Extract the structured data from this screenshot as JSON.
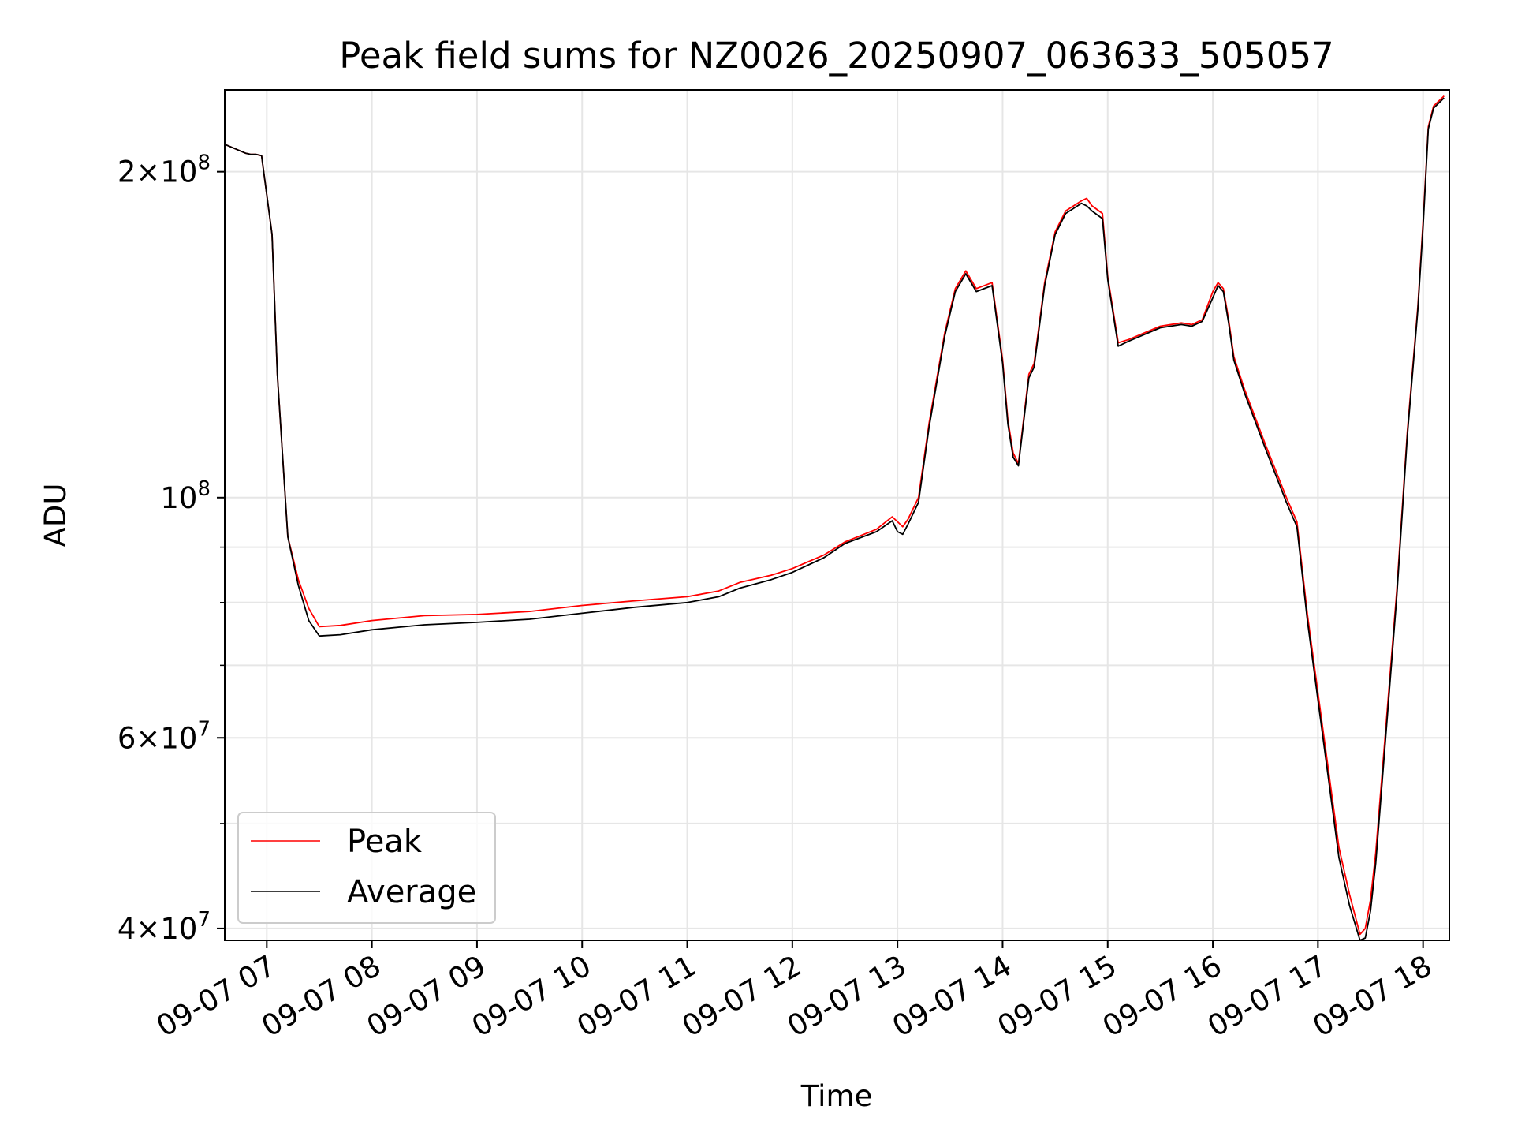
{
  "chart_data": {
    "type": "line",
    "title": "Peak field sums for NZ0026_20250907_063633_505057",
    "xlabel": "Time",
    "ylabel": "ADU",
    "x_scale": "time",
    "y_scale": "log",
    "xlim": [
      "09-07 06:36",
      "09-07 18:15"
    ],
    "ylim": [
      39000000,
      238000000
    ],
    "x_ticks": [
      "09-07 07",
      "09-07 08",
      "09-07 09",
      "09-07 10",
      "09-07 11",
      "09-07 12",
      "09-07 13",
      "09-07 14",
      "09-07 15",
      "09-07 16",
      "09-07 17",
      "09-07 18"
    ],
    "x_tick_hours": [
      7,
      8,
      9,
      10,
      11,
      12,
      13,
      14,
      15,
      16,
      17,
      18
    ],
    "y_major_ticks": [
      {
        "value": 40000000,
        "base": "4",
        "exp": "7"
      },
      {
        "value": 60000000,
        "base": "6",
        "exp": "7"
      },
      {
        "value": 100000000,
        "base": "",
        "exp": "8"
      },
      {
        "value": 200000000,
        "base": "2",
        "exp": "8"
      }
    ],
    "y_minor_ticks": [
      50000000,
      70000000,
      80000000,
      90000000
    ],
    "grid": true,
    "legend_position": "lower-left",
    "x_hours": [
      6.6,
      6.8,
      6.85,
      6.9,
      6.95,
      7.05,
      7.1,
      7.2,
      7.3,
      7.4,
      7.5,
      7.7,
      8.0,
      8.5,
      9.0,
      9.5,
      10.0,
      10.5,
      11.0,
      11.3,
      11.5,
      11.8,
      12.0,
      12.3,
      12.5,
      12.8,
      12.95,
      13.0,
      13.05,
      13.1,
      13.2,
      13.3,
      13.45,
      13.55,
      13.65,
      13.75,
      13.9,
      14.0,
      14.05,
      14.1,
      14.15,
      14.25,
      14.3,
      14.4,
      14.5,
      14.6,
      14.75,
      14.8,
      14.85,
      14.95,
      15.0,
      15.1,
      15.2,
      15.5,
      15.7,
      15.8,
      15.9,
      16.0,
      16.05,
      16.1,
      16.15,
      16.2,
      16.3,
      16.5,
      16.7,
      16.8,
      16.9,
      17.0,
      17.1,
      17.2,
      17.3,
      17.4,
      17.45,
      17.5,
      17.55,
      17.65,
      17.75,
      17.85,
      17.95,
      18.0,
      18.05,
      18.1,
      18.2
    ],
    "series": [
      {
        "name": "Peak",
        "color": "#ff0000",
        "values": [
          212000000,
          208000000,
          207500000,
          207500000,
          207000000,
          175000000,
          130000000,
          92000000,
          84000000,
          79000000,
          76000000,
          76200000,
          77000000,
          77800000,
          78000000,
          78500000,
          79500000,
          80300000,
          81000000,
          82000000,
          83500000,
          84800000,
          86000000,
          88500000,
          91000000,
          93500000,
          96000000,
          95000000,
          94000000,
          95500000,
          100000000,
          117000000,
          142000000,
          156000000,
          162000000,
          156000000,
          158000000,
          134000000,
          118000000,
          110000000,
          107500000,
          130000000,
          133000000,
          158000000,
          176000000,
          184000000,
          188000000,
          189000000,
          186000000,
          183000000,
          160000000,
          139000000,
          140000000,
          144000000,
          145000000,
          144500000,
          146000000,
          155000000,
          158000000,
          156000000,
          146000000,
          135000000,
          126000000,
          112000000,
          100000000,
          95000000,
          78000000,
          66000000,
          56000000,
          47500000,
          43000000,
          39500000,
          40000000,
          42500000,
          47000000,
          62000000,
          82000000,
          115000000,
          150000000,
          180000000,
          220000000,
          230000000,
          235000000
        ]
      },
      {
        "name": "Average",
        "color": "#000000",
        "values": [
          212000000,
          208000000,
          207500000,
          207500000,
          207000000,
          175000000,
          130000000,
          92000000,
          83000000,
          77000000,
          74500000,
          74700000,
          75500000,
          76300000,
          76700000,
          77200000,
          78200000,
          79200000,
          80000000,
          81000000,
          82500000,
          84000000,
          85300000,
          88000000,
          90700000,
          93000000,
          95200000,
          93000000,
          92500000,
          94500000,
          99000000,
          116000000,
          141000000,
          155000000,
          161000000,
          155000000,
          157000000,
          133000000,
          117000000,
          109000000,
          107000000,
          129000000,
          132000000,
          157000000,
          175000000,
          183000000,
          187000000,
          186000000,
          184000000,
          181000000,
          159000000,
          138000000,
          139500000,
          143500000,
          144500000,
          144000000,
          145500000,
          153000000,
          157000000,
          155000000,
          145000000,
          134000000,
          125000000,
          111000000,
          99000000,
          94000000,
          77000000,
          65000000,
          55000000,
          46500000,
          42000000,
          39000000,
          39200000,
          41500000,
          46000000,
          61000000,
          81000000,
          114000000,
          149000000,
          178000000,
          219000000,
          229000000,
          234000000
        ]
      }
    ]
  }
}
